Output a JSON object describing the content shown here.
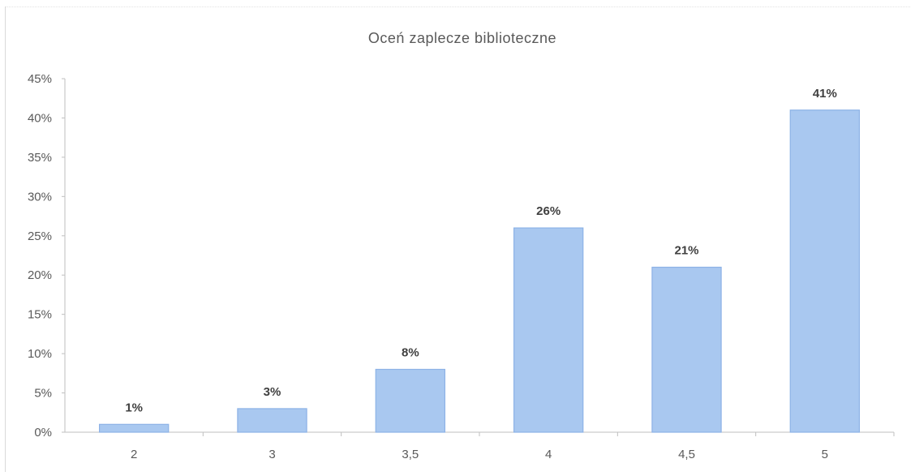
{
  "chart_data": {
    "type": "bar",
    "title": "Oceń zaplecze biblioteczne",
    "categories": [
      "2",
      "3",
      "3,5",
      "4",
      "4,5",
      "5"
    ],
    "values": [
      1,
      3,
      8,
      26,
      21,
      41
    ],
    "data_labels": [
      "1%",
      "3%",
      "8%",
      "26%",
      "21%",
      "41%"
    ],
    "y_ticks": [
      "0%",
      "5%",
      "10%",
      "15%",
      "20%",
      "25%",
      "30%",
      "35%",
      "40%",
      "45%"
    ],
    "ylim": [
      0,
      45
    ],
    "xlabel": "",
    "ylabel": "",
    "grid": false,
    "legend": "none",
    "bar_color": "#a9c8f0"
  }
}
